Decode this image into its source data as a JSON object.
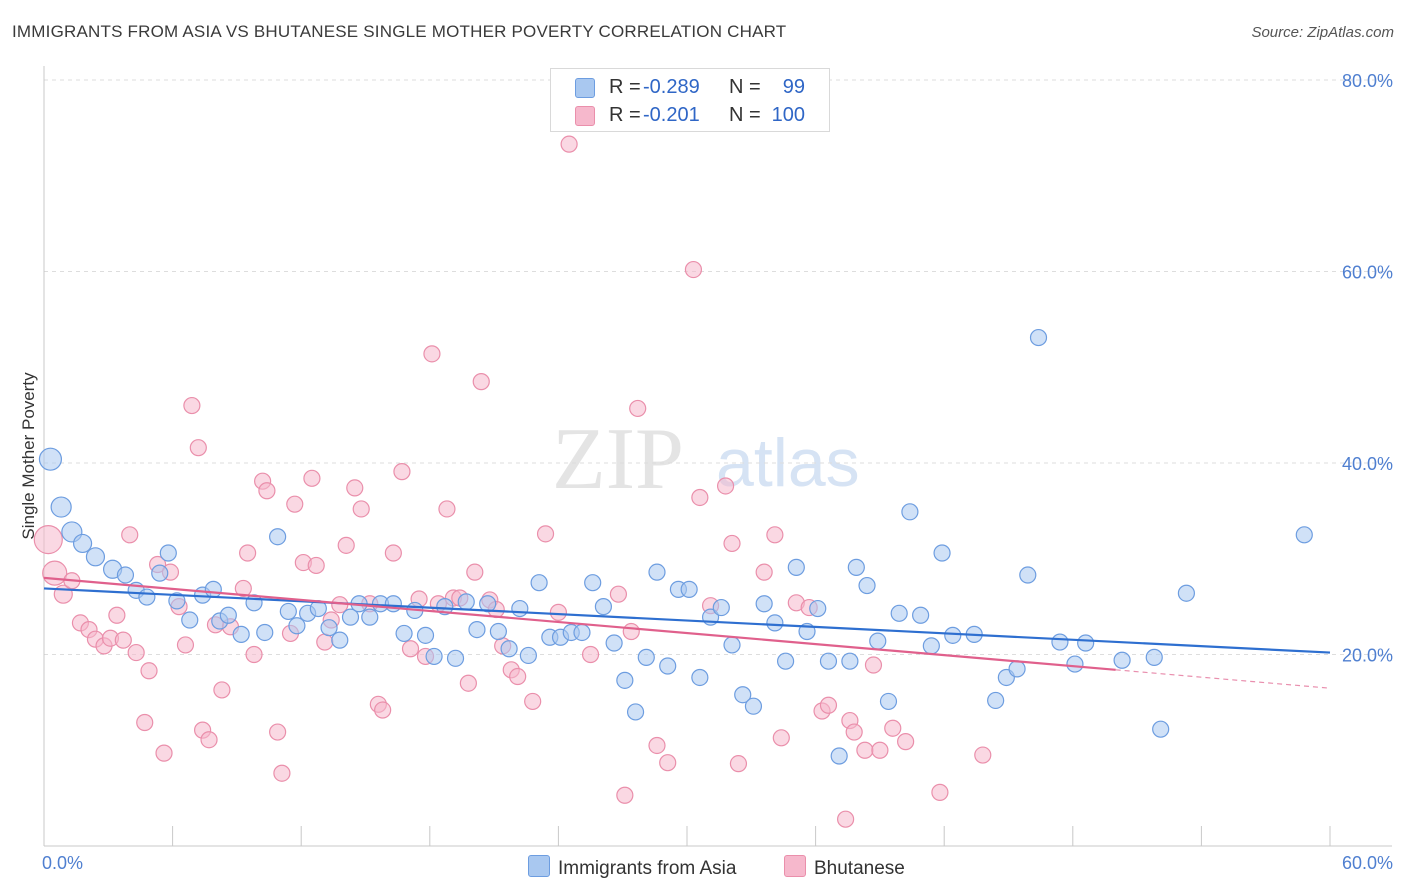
{
  "title": "IMMIGRANTS FROM ASIA VS BHUTANESE SINGLE MOTHER POVERTY CORRELATION CHART",
  "source": "Source: ZipAtlas.com",
  "watermark": {
    "zip": "ZIP",
    "atlas": "atlas"
  },
  "legend": {
    "rows": [
      {
        "r_label": "R =",
        "r_value": "-0.289",
        "n_label": "N =",
        "n_value": "99"
      },
      {
        "r_label": "R =",
        "r_value": "-0.201",
        "n_label": "N =",
        "n_value": "100"
      }
    ]
  },
  "bottom_legend": {
    "series1": "Immigrants from Asia",
    "series2": "Bhutanese"
  },
  "colors": {
    "series1_fill": "#a9c8f0",
    "series1_stroke": "#6d9de0",
    "series1_line": "#2e6fd0",
    "series2_fill": "#f6b8cc",
    "series2_stroke": "#ea8fab",
    "series2_line": "#e0608c",
    "grid": "#dddddd",
    "tick_label": "#4f7fd0"
  },
  "chart_data": {
    "type": "scatter",
    "title": "IMMIGRANTS FROM ASIA VS BHUTANESE SINGLE MOTHER POVERTY CORRELATION CHART",
    "xlabel": "",
    "ylabel": "Single Mother Poverty",
    "xlim": [
      0,
      60
    ],
    "ylim": [
      0,
      80
    ],
    "y_ticks": [
      "20.0%",
      "40.0%",
      "60.0%",
      "80.0%"
    ],
    "y_tick_values": [
      20,
      40,
      60,
      80
    ],
    "x_tick_labels": [
      "0.0%",
      "60.0%"
    ],
    "x_tick_values": [
      0,
      60
    ],
    "grid": "horizontal dashed",
    "legend_placement": "top-center",
    "series": [
      {
        "name": "Immigrants from Asia",
        "r": -0.289,
        "n": 99,
        "trend": {
          "x": [
            0,
            60
          ],
          "y": [
            26.9,
            20.2
          ]
        },
        "points": [
          [
            0.3,
            40.4,
            11
          ],
          [
            0.8,
            35.4,
            10
          ],
          [
            1.3,
            32.8,
            10
          ],
          [
            1.8,
            31.6,
            9
          ],
          [
            2.4,
            30.2,
            9
          ],
          [
            3.2,
            28.9,
            9
          ],
          [
            3.8,
            28.3,
            8
          ],
          [
            4.3,
            26.7,
            8
          ],
          [
            4.8,
            26.0,
            8
          ],
          [
            5.4,
            28.5,
            8
          ],
          [
            5.8,
            30.6,
            8
          ],
          [
            6.2,
            25.6,
            8
          ],
          [
            6.8,
            23.6,
            8
          ],
          [
            7.4,
            26.2,
            8
          ],
          [
            7.9,
            26.8,
            8
          ],
          [
            8.2,
            23.5,
            8
          ],
          [
            8.6,
            24.1,
            8
          ],
          [
            9.2,
            22.1,
            8
          ],
          [
            9.8,
            25.4,
            8
          ],
          [
            10.3,
            22.3,
            8
          ],
          [
            10.9,
            32.3,
            8
          ],
          [
            11.4,
            24.5,
            8
          ],
          [
            11.8,
            23.0,
            8
          ],
          [
            12.3,
            24.3,
            8
          ],
          [
            12.8,
            24.8,
            8
          ],
          [
            13.3,
            22.8,
            8
          ],
          [
            13.8,
            21.5,
            8
          ],
          [
            14.3,
            23.9,
            8
          ],
          [
            14.7,
            25.3,
            8
          ],
          [
            15.2,
            23.9,
            8
          ],
          [
            15.7,
            25.3,
            8
          ],
          [
            16.3,
            25.3,
            8
          ],
          [
            16.8,
            22.2,
            8
          ],
          [
            17.3,
            24.6,
            8
          ],
          [
            17.8,
            22.0,
            8
          ],
          [
            18.2,
            19.8,
            8
          ],
          [
            18.7,
            25.0,
            8
          ],
          [
            19.2,
            19.6,
            8
          ],
          [
            19.7,
            25.5,
            8
          ],
          [
            20.2,
            22.6,
            8
          ],
          [
            20.7,
            25.3,
            8
          ],
          [
            21.2,
            22.4,
            8
          ],
          [
            21.7,
            20.6,
            8
          ],
          [
            22.2,
            24.8,
            8
          ],
          [
            22.6,
            19.9,
            8
          ],
          [
            23.1,
            27.5,
            8
          ],
          [
            23.6,
            21.8,
            8
          ],
          [
            24.1,
            21.8,
            8
          ],
          [
            24.6,
            22.3,
            8
          ],
          [
            25.1,
            22.3,
            8
          ],
          [
            25.6,
            27.5,
            8
          ],
          [
            26.1,
            25.0,
            8
          ],
          [
            26.6,
            21.2,
            8
          ],
          [
            27.1,
            17.3,
            8
          ],
          [
            27.6,
            14.0,
            8
          ],
          [
            28.1,
            19.7,
            8
          ],
          [
            28.6,
            28.6,
            8
          ],
          [
            29.1,
            18.8,
            8
          ],
          [
            29.6,
            26.8,
            8
          ],
          [
            30.1,
            26.8,
            8
          ],
          [
            30.6,
            17.6,
            8
          ],
          [
            31.1,
            23.9,
            8
          ],
          [
            31.6,
            24.9,
            8
          ],
          [
            32.1,
            21.0,
            8
          ],
          [
            32.6,
            15.8,
            8
          ],
          [
            33.1,
            14.6,
            8
          ],
          [
            33.6,
            25.3,
            8
          ],
          [
            34.1,
            23.3,
            8
          ],
          [
            34.6,
            19.3,
            8
          ],
          [
            35.1,
            29.1,
            8
          ],
          [
            35.6,
            22.4,
            8
          ],
          [
            36.1,
            24.8,
            8
          ],
          [
            36.6,
            19.3,
            8
          ],
          [
            37.1,
            9.4,
            8
          ],
          [
            37.6,
            19.3,
            8
          ],
          [
            37.9,
            29.1,
            8
          ],
          [
            38.4,
            27.2,
            8
          ],
          [
            38.9,
            21.4,
            8
          ],
          [
            39.4,
            15.1,
            8
          ],
          [
            39.9,
            24.3,
            8
          ],
          [
            40.4,
            34.9,
            8
          ],
          [
            40.9,
            24.1,
            8
          ],
          [
            41.4,
            20.9,
            8
          ],
          [
            41.9,
            30.6,
            8
          ],
          [
            42.4,
            22.0,
            8
          ],
          [
            43.4,
            22.1,
            8
          ],
          [
            44.4,
            15.2,
            8
          ],
          [
            44.9,
            17.6,
            8
          ],
          [
            45.4,
            18.5,
            8
          ],
          [
            45.9,
            28.3,
            8
          ],
          [
            46.4,
            53.1,
            8
          ],
          [
            47.4,
            21.3,
            8
          ],
          [
            48.1,
            19.0,
            8
          ],
          [
            48.6,
            21.2,
            8
          ],
          [
            50.3,
            19.4,
            8
          ],
          [
            51.8,
            19.7,
            8
          ],
          [
            52.1,
            12.2,
            8
          ],
          [
            53.3,
            26.4,
            8
          ],
          [
            58.8,
            32.5,
            8
          ]
        ]
      },
      {
        "name": "Bhutanese",
        "r": -0.201,
        "n": 100,
        "trend": {
          "x": [
            0,
            50
          ],
          "y": [
            28.0,
            18.4
          ]
        },
        "points": [
          [
            0.2,
            32.0,
            14
          ],
          [
            0.5,
            28.5,
            12
          ],
          [
            0.9,
            26.3,
            9
          ],
          [
            1.3,
            27.7,
            8
          ],
          [
            1.7,
            23.3,
            8
          ],
          [
            2.1,
            22.6,
            8
          ],
          [
            2.4,
            21.6,
            8
          ],
          [
            2.8,
            20.9,
            8
          ],
          [
            3.1,
            21.7,
            8
          ],
          [
            3.4,
            24.1,
            8
          ],
          [
            3.7,
            21.5,
            8
          ],
          [
            4.0,
            32.5,
            8
          ],
          [
            4.3,
            20.2,
            8
          ],
          [
            4.7,
            12.9,
            8
          ],
          [
            4.9,
            18.3,
            8
          ],
          [
            5.3,
            29.4,
            8
          ],
          [
            5.6,
            9.7,
            8
          ],
          [
            5.9,
            28.6,
            8
          ],
          [
            6.3,
            25.0,
            8
          ],
          [
            6.6,
            21.0,
            8
          ],
          [
            6.9,
            46.0,
            8
          ],
          [
            7.2,
            41.6,
            8
          ],
          [
            7.4,
            12.1,
            8
          ],
          [
            7.7,
            11.1,
            8
          ],
          [
            8.0,
            23.1,
            8
          ],
          [
            8.3,
            16.3,
            8
          ],
          [
            8.7,
            22.9,
            8
          ],
          [
            9.3,
            26.9,
            8
          ],
          [
            9.5,
            30.6,
            8
          ],
          [
            9.8,
            20.0,
            8
          ],
          [
            10.2,
            38.1,
            8
          ],
          [
            10.4,
            37.1,
            8
          ],
          [
            10.9,
            11.9,
            8
          ],
          [
            11.1,
            7.6,
            8
          ],
          [
            11.5,
            22.2,
            8
          ],
          [
            11.7,
            35.7,
            8
          ],
          [
            12.1,
            29.6,
            8
          ],
          [
            12.5,
            38.4,
            8
          ],
          [
            12.7,
            29.3,
            8
          ],
          [
            13.1,
            21.3,
            8
          ],
          [
            13.4,
            23.6,
            8
          ],
          [
            13.8,
            25.2,
            8
          ],
          [
            14.1,
            31.4,
            8
          ],
          [
            14.5,
            37.4,
            8
          ],
          [
            14.8,
            35.2,
            8
          ],
          [
            15.2,
            25.3,
            8
          ],
          [
            15.6,
            14.8,
            8
          ],
          [
            15.8,
            14.2,
            8
          ],
          [
            16.3,
            30.6,
            8
          ],
          [
            16.7,
            39.1,
            8
          ],
          [
            17.1,
            20.6,
            8
          ],
          [
            17.5,
            25.8,
            8
          ],
          [
            17.8,
            19.8,
            8
          ],
          [
            18.1,
            51.4,
            8
          ],
          [
            18.4,
            25.3,
            8
          ],
          [
            18.8,
            35.2,
            8
          ],
          [
            19.1,
            25.9,
            8
          ],
          [
            19.4,
            25.9,
            8
          ],
          [
            19.8,
            17.0,
            8
          ],
          [
            20.1,
            28.6,
            8
          ],
          [
            20.4,
            48.5,
            8
          ],
          [
            20.8,
            25.7,
            8
          ],
          [
            21.1,
            24.7,
            8
          ],
          [
            21.4,
            20.9,
            8
          ],
          [
            21.8,
            18.4,
            8
          ],
          [
            22.1,
            17.7,
            8
          ],
          [
            22.8,
            15.1,
            8
          ],
          [
            23.4,
            32.6,
            8
          ],
          [
            24.0,
            24.4,
            8
          ],
          [
            24.5,
            73.3,
            8
          ],
          [
            25.5,
            20.0,
            8
          ],
          [
            26.8,
            26.3,
            8
          ],
          [
            27.1,
            5.3,
            8
          ],
          [
            27.4,
            22.4,
            8
          ],
          [
            27.7,
            45.7,
            8
          ],
          [
            28.6,
            10.5,
            8
          ],
          [
            29.1,
            8.7,
            8
          ],
          [
            30.3,
            60.2,
            8
          ],
          [
            30.6,
            36.4,
            8
          ],
          [
            31.1,
            25.1,
            8
          ],
          [
            31.8,
            37.6,
            8
          ],
          [
            32.1,
            31.6,
            8
          ],
          [
            32.4,
            8.6,
            8
          ],
          [
            33.6,
            28.6,
            8
          ],
          [
            34.1,
            32.5,
            8
          ],
          [
            34.4,
            11.3,
            8
          ],
          [
            35.1,
            25.4,
            8
          ],
          [
            35.7,
            24.9,
            8
          ],
          [
            36.3,
            14.1,
            8
          ],
          [
            36.6,
            14.7,
            8
          ],
          [
            37.4,
            2.8,
            8
          ],
          [
            37.6,
            13.1,
            8
          ],
          [
            37.8,
            11.9,
            8
          ],
          [
            38.3,
            10.0,
            8
          ],
          [
            38.7,
            18.9,
            8
          ],
          [
            39.0,
            10.0,
            8
          ],
          [
            39.6,
            12.3,
            8
          ],
          [
            40.2,
            10.9,
            8
          ],
          [
            41.8,
            5.6,
            8
          ],
          [
            43.8,
            9.5,
            8
          ]
        ]
      }
    ]
  }
}
